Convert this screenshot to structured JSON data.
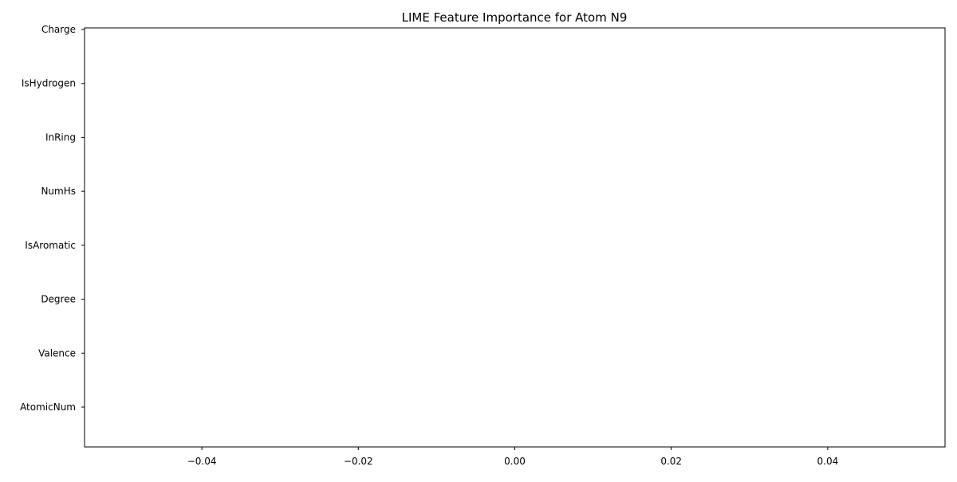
{
  "chart_data": {
    "type": "bar",
    "orientation": "horizontal",
    "title": "LIME Feature Importance for Atom N9",
    "xlabel": "",
    "ylabel": "",
    "categories": [
      "AtomicNum",
      "Valence",
      "Degree",
      "IsAromatic",
      "NumHs",
      "InRing",
      "IsHydrogen",
      "Charge"
    ],
    "values": [
      0,
      0,
      0,
      0,
      0,
      0,
      0,
      0
    ],
    "xlim": [
      -0.055,
      0.055
    ],
    "xticks": [
      -0.04,
      -0.02,
      0.0,
      0.02,
      0.04
    ],
    "xtick_labels": [
      "−0.04",
      "−0.02",
      "0.00",
      "0.02",
      "0.04"
    ],
    "grid": false,
    "bar_color": "#1f77b4"
  }
}
